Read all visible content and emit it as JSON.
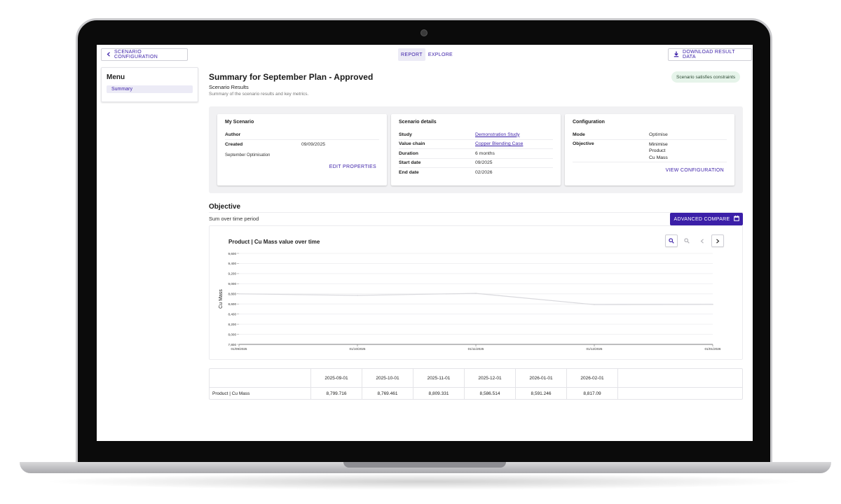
{
  "topbar": {
    "back_label": "SCENARIO CONFIGURATION",
    "tabs": [
      {
        "label": "REPORT",
        "active": true
      },
      {
        "label": "EXPLORE",
        "active": false
      }
    ],
    "download_label": "DOWNLOAD RESULT DATA"
  },
  "sidebar": {
    "title": "Menu",
    "items": [
      {
        "label": "Summary",
        "selected": true
      }
    ]
  },
  "header": {
    "title": "Summary for September Plan - Approved",
    "subtitle": "Scenario Results",
    "description": "Summary of the scenario results and key metrics.",
    "badge": "Scenario satisfies constraints"
  },
  "cards": {
    "my_scenario": {
      "title": "My Scenario",
      "author_label": "Author",
      "author_value": "",
      "created_label": "Created",
      "created_value": "09/09/2025",
      "note": "September Optimisation",
      "action": "EDIT PROPERTIES"
    },
    "details": {
      "title": "Scenario details",
      "rows": [
        {
          "label": "Study",
          "value": "Demonstration Study"
        },
        {
          "label": "Value chain",
          "value": "Copper Blending Case"
        },
        {
          "label": "Duration",
          "value": "6 months"
        },
        {
          "label": "Start date",
          "value": "09/2025"
        },
        {
          "label": "End date",
          "value": "02/2026"
        }
      ]
    },
    "configuration": {
      "title": "Configuration",
      "mode_label": "Mode",
      "mode_value": "Optimise",
      "objective_label": "Objective",
      "objective_values": [
        "Minimise",
        "Product",
        "Cu Mass"
      ],
      "action": "VIEW CONFIGURATION"
    }
  },
  "objective": {
    "title": "Objective",
    "subtitle": "Sum over time period",
    "compare_label": "ADVANCED COMPARE"
  },
  "icons": {
    "back": "chevron-left-icon",
    "download": "download-icon",
    "compare": "calendar-icon",
    "zoom_in": "zoom-in-icon",
    "zoom_out": "zoom-out-icon",
    "prev": "chevron-left-icon",
    "next": "chevron-right-icon"
  },
  "colors": {
    "accent": "#3b1fa8",
    "badge_bg": "#e6f4ea",
    "line": "#d9d9dd"
  },
  "chart_data": {
    "type": "line",
    "title": "Product | Cu Mass value over time",
    "xlabel": "",
    "ylabel": "Cu Mass",
    "x_ticks": [
      "01/09/2025",
      "01/10/2025",
      "01/11/2025",
      "01/12/2025",
      "01/01/2026"
    ],
    "y_ticks": [
      "9,600",
      "9,400",
      "9,200",
      "9,000",
      "8,800",
      "8,600",
      "8,400",
      "8,200",
      "8,000",
      "7,800"
    ],
    "ylim": [
      7800,
      9600
    ],
    "x": [
      "2025-09-01",
      "2025-10-01",
      "2025-11-01",
      "2025-12-01",
      "2026-01-01"
    ],
    "series": [
      {
        "values": [
          8799.716,
          8769.461,
          8809.331,
          8586.514,
          8591.246
        ]
      }
    ],
    "grid": true
  },
  "table": {
    "header_label": "",
    "columns": [
      "2025-09-01",
      "2025-10-01",
      "2025-11-01",
      "2025-12-01",
      "2026-01-01",
      "2026-02-01"
    ],
    "rows": [
      {
        "label": "Product | Cu Mass",
        "values": [
          "8,799.716",
          "8,769.461",
          "8,809.331",
          "8,586.514",
          "8,591.246",
          "8,817.09"
        ]
      }
    ]
  }
}
